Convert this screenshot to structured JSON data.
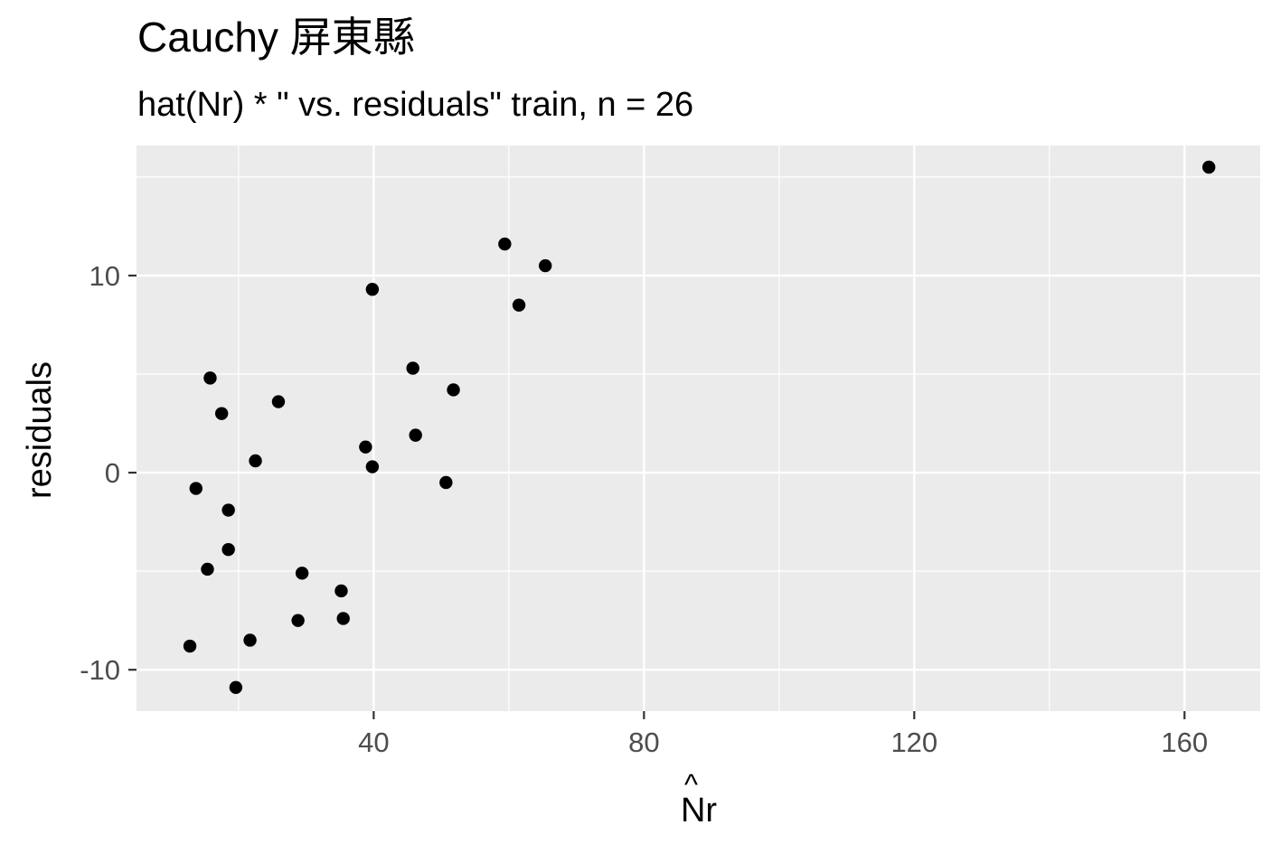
{
  "chart_data": {
    "type": "scatter",
    "title": "Cauchy 屏東縣",
    "subtitle": "hat(Nr) * \" vs. residuals\" train, n = 26",
    "xlabel": "Nr",
    "xlabel_accent": "^",
    "ylabel": "residuals",
    "xlim": [
      4.9,
      171.2
    ],
    "ylim": [
      -12.1,
      16.6
    ],
    "x_major_ticks": [
      40,
      80,
      120,
      160
    ],
    "x_minor_ticks": [
      20,
      60,
      100,
      140
    ],
    "y_major_ticks": [
      -10,
      0,
      10
    ],
    "y_minor_ticks": [
      -5,
      5,
      15
    ],
    "x_tick_labels": [
      "40",
      "80",
      "120",
      "160"
    ],
    "y_tick_labels": [
      "-10",
      "0",
      "10"
    ],
    "grid": true,
    "colors": {
      "panel": "#ebebeb",
      "grid": "#ffffff",
      "point": "#000000",
      "tick_text": "#4d4d4d",
      "tick_mark": "#333333"
    },
    "points": [
      {
        "x": 163.6,
        "y": 15.5
      },
      {
        "x": 59.4,
        "y": 11.6
      },
      {
        "x": 65.4,
        "y": 10.5
      },
      {
        "x": 39.8,
        "y": 9.3
      },
      {
        "x": 61.5,
        "y": 8.5
      },
      {
        "x": 45.8,
        "y": 5.3
      },
      {
        "x": 15.8,
        "y": 4.8
      },
      {
        "x": 51.8,
        "y": 4.2
      },
      {
        "x": 25.9,
        "y": 3.6
      },
      {
        "x": 17.5,
        "y": 3.0
      },
      {
        "x": 46.2,
        "y": 1.9
      },
      {
        "x": 38.8,
        "y": 1.3
      },
      {
        "x": 22.5,
        "y": 0.6
      },
      {
        "x": 39.8,
        "y": 0.3
      },
      {
        "x": 50.7,
        "y": -0.5
      },
      {
        "x": 13.7,
        "y": -0.8
      },
      {
        "x": 18.5,
        "y": -1.9
      },
      {
        "x": 18.5,
        "y": -3.9
      },
      {
        "x": 15.4,
        "y": -4.9
      },
      {
        "x": 29.4,
        "y": -5.1
      },
      {
        "x": 35.2,
        "y": -6.0
      },
      {
        "x": 35.5,
        "y": -7.4
      },
      {
        "x": 28.8,
        "y": -7.5
      },
      {
        "x": 21.7,
        "y": -8.5
      },
      {
        "x": 12.8,
        "y": -8.8
      },
      {
        "x": 19.6,
        "y": -10.9
      }
    ]
  }
}
